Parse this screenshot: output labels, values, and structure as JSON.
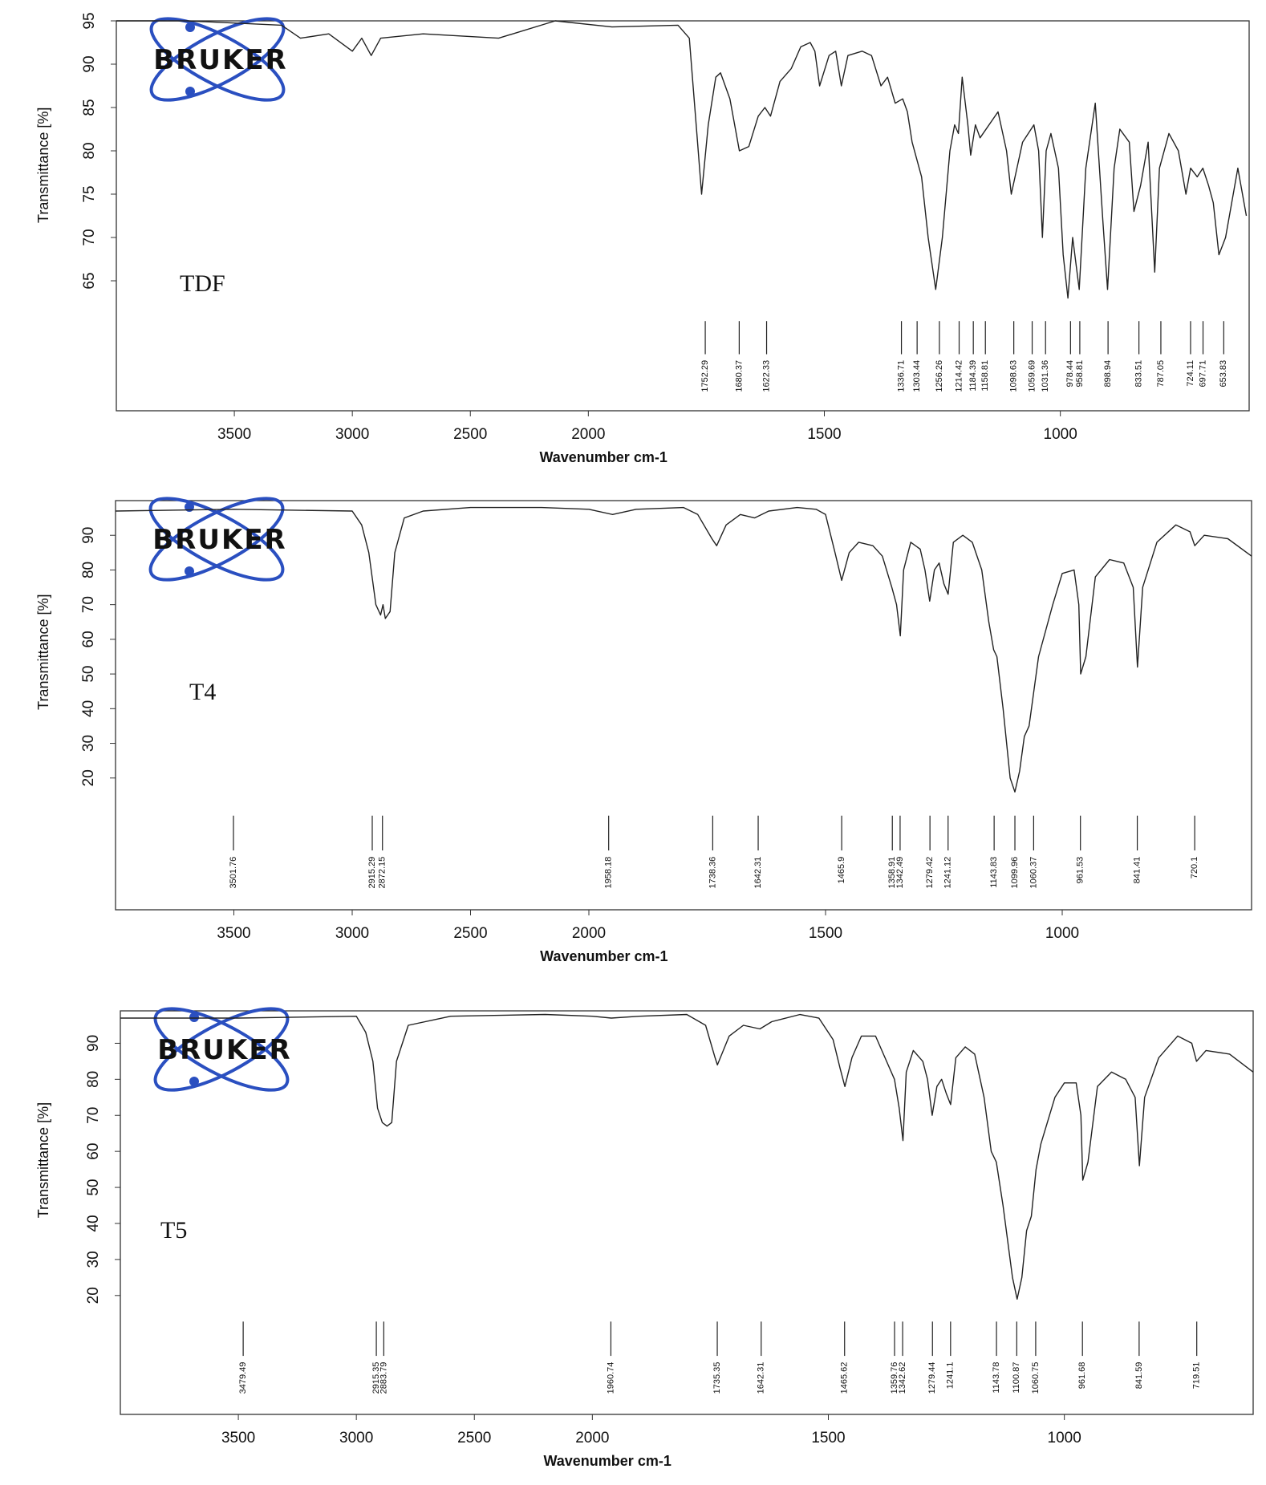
{
  "chart_data": [
    {
      "type": "line",
      "sample_label": "TDF",
      "logo_text": "BRUKER",
      "x_label": "Wavenumber cm-1",
      "y_label": "Transmittance [%]",
      "x": [
        4000,
        3700,
        3300,
        3220,
        3100,
        3000,
        2960,
        2920,
        2880,
        2700,
        2380,
        2140,
        1950,
        1810,
        1786,
        1770,
        1760,
        1746,
        1730,
        1720,
        1700,
        1680,
        1660,
        1640,
        1626,
        1614,
        1594,
        1570,
        1550,
        1530,
        1520,
        1510,
        1490,
        1476,
        1464,
        1450,
        1420,
        1400,
        1380,
        1366,
        1350,
        1334,
        1324,
        1314,
        1294,
        1280,
        1264,
        1250,
        1234,
        1224,
        1216,
        1208,
        1196,
        1190,
        1180,
        1170,
        1132,
        1114,
        1104,
        1080,
        1056,
        1046,
        1038,
        1030,
        1020,
        1004,
        994,
        984,
        974,
        960,
        946,
        926,
        910,
        900,
        886,
        874,
        854,
        844,
        830,
        814,
        800,
        790,
        770,
        750,
        734,
        724,
        710,
        698,
        686,
        676,
        664,
        650,
        624,
        606
      ],
      "series": [
        {
          "color": "#222222",
          "values": [
            95,
            95,
            94.5,
            93,
            93.5,
            91.5,
            93,
            91,
            93,
            93.5,
            93,
            95,
            94.3,
            94.5,
            93,
            82,
            75,
            83,
            88.5,
            89,
            86,
            80,
            80.5,
            84,
            85,
            84,
            88,
            89.5,
            92,
            92.5,
            91.5,
            87.5,
            91,
            91.5,
            87.5,
            91,
            91.5,
            91,
            87.5,
            88.5,
            85.5,
            86,
            84.5,
            81,
            77,
            70,
            64,
            70,
            80,
            83,
            82,
            88.5,
            83,
            79.5,
            83,
            81.5,
            84.5,
            80,
            75,
            81,
            83,
            80,
            70,
            80,
            82,
            78,
            68,
            63,
            70,
            64,
            78,
            85.5,
            72,
            64,
            78,
            82.5,
            81,
            73,
            76,
            81,
            66,
            78,
            82,
            80,
            75,
            78,
            77,
            78,
            76,
            74,
            68,
            70,
            78,
            72.5
          ]
        }
      ],
      "xlim": [
        4000,
        600
      ],
      "xticks": [
        3500,
        3000,
        2500,
        2000,
        1500,
        1000
      ],
      "x_break": 2000,
      "x_break_ratio": 2,
      "ylim": [
        50,
        95
      ],
      "yticks": [
        65,
        70,
        75,
        80,
        85,
        90,
        95
      ],
      "peaks": [
        1752.29,
        1680.37,
        1622.33,
        1336.71,
        1303.44,
        1256.26,
        1214.42,
        1184.39,
        1158.81,
        1098.63,
        1059.69,
        1031.36,
        978.44,
        958.81,
        898.94,
        833.51,
        787.05,
        724.11,
        697.71,
        653.83
      ]
    },
    {
      "type": "line",
      "sample_label": "T4",
      "logo_text": "BRUKER",
      "x_label": "Wavenumber cm-1",
      "y_label": "Transmittance [%]",
      "x": [
        4000,
        3500,
        3000,
        2960,
        2930,
        2900,
        2880,
        2870,
        2860,
        2840,
        2820,
        2780,
        2700,
        2500,
        2200,
        2000,
        1950,
        1900,
        1800,
        1770,
        1740,
        1730,
        1710,
        1680,
        1650,
        1620,
        1560,
        1520,
        1500,
        1480,
        1466,
        1450,
        1430,
        1400,
        1380,
        1360,
        1350,
        1342,
        1335,
        1320,
        1300,
        1290,
        1280,
        1270,
        1260,
        1250,
        1241,
        1230,
        1210,
        1190,
        1170,
        1155,
        1145,
        1138,
        1125,
        1110,
        1100,
        1090,
        1080,
        1070,
        1060,
        1050,
        1020,
        1000,
        975,
        965,
        961,
        950,
        930,
        900,
        870,
        850,
        841,
        830,
        800,
        760,
        730,
        720,
        700,
        650,
        600
      ],
      "series": [
        {
          "color": "#222222",
          "values": [
            97,
            97.5,
            97,
            93,
            85,
            70,
            67,
            70,
            66,
            68,
            85,
            95,
            97,
            98,
            98,
            97.5,
            96,
            97.5,
            98,
            96,
            89,
            87,
            93,
            96,
            95,
            97,
            98,
            97.5,
            96,
            85,
            77,
            85,
            88,
            87,
            84,
            75,
            70,
            61,
            80,
            88,
            86,
            80,
            71,
            80,
            82,
            76,
            73,
            88,
            90,
            88,
            80,
            65,
            57,
            55,
            40,
            20,
            16,
            22,
            32,
            35,
            45,
            55,
            70,
            79,
            80,
            70,
            50,
            55,
            78,
            83,
            82,
            75,
            52,
            75,
            88,
            93,
            91,
            87,
            90,
            89,
            84
          ]
        }
      ],
      "xlim": [
        4000,
        600
      ],
      "xticks": [
        3500,
        3000,
        2500,
        2000,
        1500,
        1000
      ],
      "x_break": 2000,
      "x_break_ratio": 2,
      "ylim": [
        -18,
        100
      ],
      "yticks": [
        20,
        30,
        40,
        50,
        60,
        70,
        80,
        90
      ],
      "peaks": [
        3501.76,
        2915.29,
        2872.15,
        1958.18,
        1738.36,
        1642.31,
        1465.9,
        1358.91,
        1342.49,
        1279.42,
        1241.12,
        1143.83,
        1099.96,
        1060.37,
        961.53,
        841.41,
        720.1
      ]
    },
    {
      "type": "line",
      "sample_label": "T5",
      "logo_text": "BRUKER",
      "x_label": "Wavenumber cm-1",
      "y_label": "Transmittance [%]",
      "x": [
        4000,
        3500,
        3000,
        2960,
        2930,
        2910,
        2890,
        2870,
        2850,
        2830,
        2780,
        2600,
        2200,
        2000,
        1960,
        1900,
        1800,
        1760,
        1740,
        1735,
        1710,
        1680,
        1645,
        1620,
        1560,
        1520,
        1490,
        1475,
        1465,
        1450,
        1430,
        1400,
        1380,
        1360,
        1350,
        1342,
        1335,
        1320,
        1300,
        1290,
        1280,
        1270,
        1260,
        1250,
        1241,
        1230,
        1210,
        1190,
        1170,
        1155,
        1144,
        1130,
        1110,
        1100,
        1090,
        1080,
        1070,
        1060,
        1050,
        1020,
        1000,
        975,
        965,
        961,
        950,
        930,
        900,
        870,
        850,
        841,
        830,
        800,
        760,
        730,
        720,
        700,
        650,
        600
      ],
      "series": [
        {
          "color": "#222222",
          "values": [
            97,
            97,
            97.5,
            93,
            85,
            72,
            68,
            67,
            68,
            85,
            95,
            97.5,
            98,
            97.5,
            97,
            97.5,
            98,
            95,
            86,
            84,
            92,
            95,
            94,
            96,
            98,
            97,
            91,
            83,
            78,
            86,
            92,
            92,
            86,
            80,
            72,
            63,
            82,
            88,
            85,
            80,
            70,
            78,
            80,
            76,
            73,
            86,
            89,
            87,
            75,
            60,
            57,
            45,
            25,
            19,
            25,
            38,
            42,
            55,
            62,
            75,
            79,
            79,
            70,
            52,
            57,
            78,
            82,
            80,
            75,
            56,
            75,
            86,
            92,
            90,
            85,
            88,
            87,
            82
          ]
        }
      ],
      "xlim": [
        4000,
        600
      ],
      "xticks": [
        3500,
        3000,
        2500,
        2000,
        1500,
        1000
      ],
      "x_break": 2000,
      "x_break_ratio": 2,
      "ylim": [
        -13,
        99
      ],
      "yticks": [
        20,
        30,
        40,
        50,
        60,
        70,
        80,
        90
      ],
      "peaks": [
        3479.49,
        2915.35,
        2883.79,
        1960.74,
        1735.35,
        1642.31,
        1465.62,
        1359.76,
        1342.62,
        1279.44,
        1241.1,
        1143.78,
        1100.87,
        1060.75,
        961.68,
        841.59,
        719.51
      ]
    }
  ]
}
